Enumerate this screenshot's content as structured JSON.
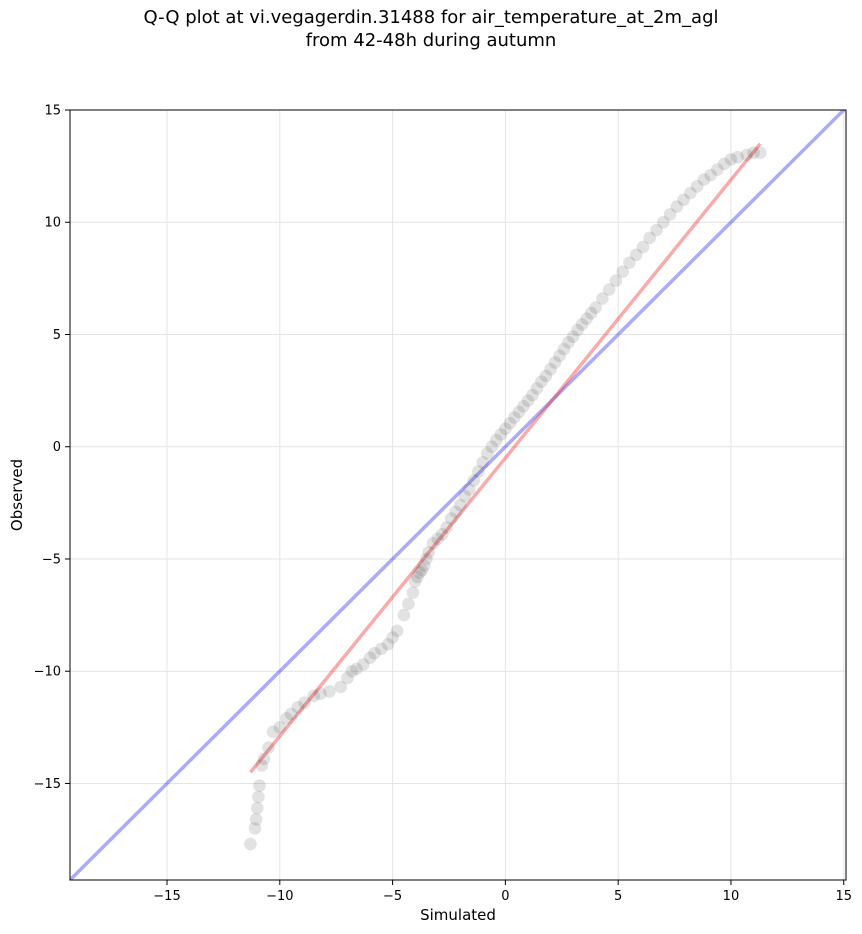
{
  "chart_data": {
    "type": "scatter",
    "title_line1": "Q-Q plot at vi.vegagerdin.31488 for air_temperature_at_2m_agl",
    "title_line2": "from 42-48h during autumn",
    "xlabel": "Simulated",
    "ylabel": "Observed",
    "xlim": [
      -19.3,
      15.1
    ],
    "ylim": [
      -19.3,
      15.0
    ],
    "xticks": [
      -15,
      -10,
      -5,
      0,
      5,
      10,
      15
    ],
    "yticks": [
      -15,
      -10,
      -5,
      0,
      5,
      10,
      15
    ],
    "xtick_labels": [
      "−15",
      "−10",
      "−5",
      "0",
      "5",
      "10",
      "15"
    ],
    "ytick_labels": [
      "−15",
      "−10",
      "−5",
      "0",
      "5",
      "10",
      "15"
    ],
    "grid": true,
    "legend": "none",
    "colors": {
      "points": "#333333",
      "identity_line": "#0000ee",
      "fit_line": "#ee2222",
      "grid": "#e4e4e4"
    },
    "identity_line": {
      "x": [
        -19.3,
        15.1
      ],
      "y": [
        -19.3,
        15.1
      ]
    },
    "fit_line": {
      "x": [
        -11.3,
        11.3
      ],
      "y": [
        -14.5,
        13.5
      ]
    },
    "quantiles": {
      "x": [
        -11.3,
        -11.1,
        -11.05,
        -11.0,
        -10.95,
        -10.9,
        -10.8,
        -10.7,
        -10.5,
        -10.3,
        -10.0,
        -9.7,
        -9.5,
        -9.2,
        -8.9,
        -8.5,
        -8.2,
        -7.8,
        -7.3,
        -7.0,
        -6.8,
        -6.6,
        -6.3,
        -6.0,
        -5.8,
        -5.5,
        -5.2,
        -5.0,
        -4.8,
        -4.5,
        -4.3,
        -4.1,
        -4.0,
        -3.9,
        -3.8,
        -3.7,
        -3.6,
        -3.5,
        -3.4,
        -3.2,
        -3.0,
        -2.8,
        -2.6,
        -2.4,
        -2.2,
        -2.0,
        -1.8,
        -1.6,
        -1.4,
        -1.2,
        -1.0,
        -0.8,
        -0.6,
        -0.4,
        -0.2,
        0.0,
        0.2,
        0.4,
        0.6,
        0.8,
        1.0,
        1.2,
        1.4,
        1.6,
        1.8,
        2.0,
        2.2,
        2.4,
        2.6,
        2.8,
        3.0,
        3.2,
        3.4,
        3.6,
        3.8,
        4.0,
        4.3,
        4.6,
        4.9,
        5.2,
        5.5,
        5.8,
        6.1,
        6.4,
        6.7,
        7.0,
        7.3,
        7.6,
        7.9,
        8.2,
        8.5,
        8.8,
        9.1,
        9.4,
        9.7,
        10.0,
        10.3,
        10.7,
        11.0,
        11.3
      ],
      "y": [
        -17.7,
        -17.0,
        -16.6,
        -16.1,
        -15.6,
        -15.1,
        -14.2,
        -13.9,
        -13.4,
        -12.7,
        -12.5,
        -12.1,
        -11.9,
        -11.6,
        -11.4,
        -11.1,
        -11.0,
        -10.9,
        -10.7,
        -10.3,
        -10.0,
        -9.9,
        -9.7,
        -9.4,
        -9.2,
        -9.0,
        -8.8,
        -8.5,
        -8.2,
        -7.5,
        -7.0,
        -6.5,
        -6.0,
        -5.8,
        -5.6,
        -5.5,
        -5.3,
        -5.0,
        -4.7,
        -4.3,
        -4.1,
        -3.9,
        -3.6,
        -3.2,
        -2.9,
        -2.6,
        -2.2,
        -1.9,
        -1.5,
        -1.1,
        -0.7,
        -0.3,
        0.0,
        0.3,
        0.55,
        0.8,
        1.05,
        1.3,
        1.55,
        1.8,
        2.05,
        2.3,
        2.6,
        2.9,
        3.15,
        3.45,
        3.75,
        4.05,
        4.35,
        4.65,
        4.9,
        5.2,
        5.45,
        5.7,
        5.95,
        6.2,
        6.6,
        7.0,
        7.4,
        7.8,
        8.2,
        8.55,
        8.9,
        9.3,
        9.65,
        10.0,
        10.35,
        10.7,
        11.0,
        11.3,
        11.6,
        11.9,
        12.1,
        12.35,
        12.6,
        12.8,
        12.9,
        13.0,
        13.1,
        13.1
      ]
    }
  }
}
